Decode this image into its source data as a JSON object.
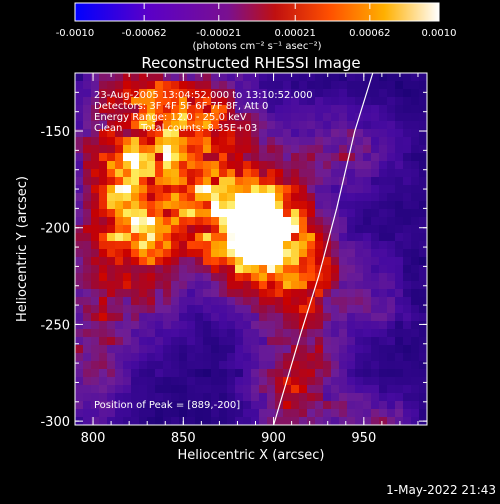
{
  "chart_data": {
    "type": "heatmap",
    "title": "Reconstructed RHESSI Image",
    "xlabel": "Heliocentric X (arcsec)",
    "ylabel": "Heliocentric Y (arcsec)",
    "xlim": [
      790,
      985
    ],
    "ylim": [
      -302,
      -120
    ],
    "x_ticks": [
      "800",
      "850",
      "900",
      "950"
    ],
    "y_ticks": [
      "-150",
      "-200",
      "-250",
      "-300"
    ],
    "grid": false,
    "colorbar": {
      "range": [
        -0.001,
        0.001
      ],
      "tick_labels": [
        "-0.0010",
        "-0.00062",
        "-0.00021",
        "0.00021",
        "0.00062",
        "0.0010"
      ],
      "unit_label": "(photons cm⁻² s⁻¹ asec⁻²)"
    },
    "annotations": {
      "time_range": "23-Aug-2005 13:04:52.000 to 13:10:52.000",
      "detectors": "Detectors: 3F 4F 5F 6F 7F 8F, Att 0",
      "energy": "Energy Range: 12.0 - 25.0 keV",
      "method": "Clean",
      "counts": "Total counts: 8.35E+03",
      "peak": "Position of Peak = [889,-200]"
    },
    "peak": [
      889,
      -200
    ],
    "limb_curve": [
      [
        900,
        -302
      ],
      [
        915,
        -255
      ],
      [
        925,
        -225
      ],
      [
        935,
        -190
      ],
      [
        945,
        -150
      ],
      [
        955,
        -120
      ]
    ],
    "intensity_sources": [
      {
        "x": 893,
        "y": -205,
        "amp": 1.0,
        "sx": 17,
        "sy": 20
      },
      {
        "x": 870,
        "y": -185,
        "amp": 0.55,
        "sx": 22,
        "sy": 22
      },
      {
        "x": 822,
        "y": -160,
        "amp": 0.45,
        "sx": 22,
        "sy": 40
      },
      {
        "x": 822,
        "y": -205,
        "amp": 0.45,
        "sx": 22,
        "sy": 32
      },
      {
        "x": 800,
        "y": -270,
        "amp": 0.3,
        "sx": 12,
        "sy": 25
      },
      {
        "x": 858,
        "y": -140,
        "amp": 0.45,
        "sx": 22,
        "sy": 16
      },
      {
        "x": 922,
        "y": -222,
        "amp": 0.4,
        "sx": 15,
        "sy": 20
      },
      {
        "x": 935,
        "y": -160,
        "amp": 0.3,
        "sx": 22,
        "sy": 15
      },
      {
        "x": 912,
        "y": -280,
        "amp": 0.5,
        "sx": 16,
        "sy": 24
      },
      {
        "x": 958,
        "y": -235,
        "amp": 0.2,
        "sx": 12,
        "sy": 14
      },
      {
        "x": 955,
        "y": -300,
        "amp": 0.3,
        "sx": 14,
        "sy": 10
      }
    ]
  },
  "footer": {
    "timestamp": "1-May-2022 21:43"
  }
}
